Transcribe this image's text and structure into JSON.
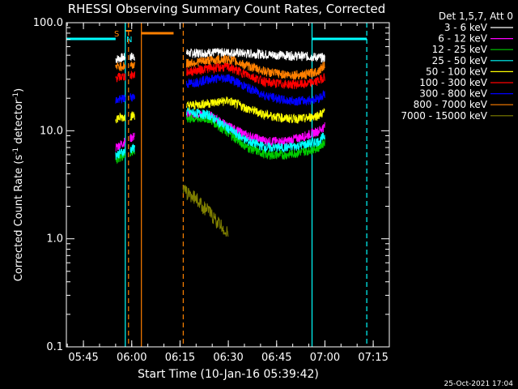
{
  "chart_data": {
    "type": "line",
    "title": "RHESSI Observing Summary Count Rates, Corrected",
    "xlabel": "Start Time (10-Jan-16 05:39:42)",
    "ylabel": "Corrected Count Rate (s⁻¹ detector⁻¹)",
    "ylabel_main": "Corrected Count Rate (s",
    "ylabel_sup1": "-1",
    "ylabel_mid": " detector",
    "ylabel_sup2": "-1",
    "ylabel_end": ")",
    "yscale": "log",
    "ylim": [
      0.1,
      100.0
    ],
    "xlim": [
      "05:39:42",
      "07:20:00"
    ],
    "ytick_labels": [
      "0.1",
      "1.0",
      "10.0",
      "100.0"
    ],
    "xtick_labels": [
      "05:45",
      "06:00",
      "06:15",
      "06:30",
      "06:45",
      "07:00",
      "07:15"
    ],
    "legend": {
      "header": "Det 1,5,7, Att 0",
      "placement": "outside-right"
    },
    "footer_stamp": "25-Oct-2021 17:04",
    "markers": {
      "S": "S",
      "N": "N"
    },
    "series": [
      {
        "name": "3 - 6 keV",
        "color": "#ffffff",
        "x": [
          "05:55",
          "05:58",
          "06:01",
          "06:17",
          "06:24",
          "06:30",
          "06:36",
          "06:42",
          "06:48",
          "06:54",
          "06:58",
          "07:00"
        ],
        "y": [
          46,
          48,
          49,
          52,
          53,
          53,
          52,
          51,
          50,
          49,
          48,
          47
        ]
      },
      {
        "name": "6 - 12 keV",
        "color": "#ff00ff",
        "x": [
          "05:55",
          "05:58",
          "06:01",
          "06:17",
          "06:24",
          "06:30",
          "06:36",
          "06:42",
          "06:48",
          "06:54",
          "06:58",
          "07:00"
        ],
        "y": [
          7,
          8,
          9,
          14,
          14,
          11,
          9,
          8,
          8,
          9,
          10,
          11
        ]
      },
      {
        "name": "12 - 25 keV",
        "color": "#00cc00",
        "x": [
          "05:55",
          "05:58",
          "06:01",
          "06:17",
          "06:24",
          "06:30",
          "06:36",
          "06:42",
          "06:48",
          "06:54",
          "06:58",
          "07:00"
        ],
        "y": [
          5.5,
          6,
          6.5,
          13,
          13,
          9.5,
          7,
          6,
          6,
          6.5,
          7,
          8
        ]
      },
      {
        "name": "25 - 50 keV",
        "color": "#00ffff",
        "x": [
          "05:55",
          "05:58",
          "06:01",
          "06:17",
          "06:24",
          "06:30",
          "06:36",
          "06:42",
          "06:48",
          "06:54",
          "06:58",
          "07:00"
        ],
        "y": [
          6,
          6.5,
          7,
          15,
          14,
          10.5,
          8,
          7,
          7,
          7.5,
          8,
          9
        ]
      },
      {
        "name": "50 - 100 keV",
        "color": "#ffff00",
        "x": [
          "05:55",
          "05:58",
          "06:01",
          "06:17",
          "06:24",
          "06:30",
          "06:36",
          "06:42",
          "06:48",
          "06:54",
          "06:58",
          "07:00"
        ],
        "y": [
          13,
          13.5,
          14,
          17,
          18,
          19,
          16,
          14,
          13,
          13,
          14,
          15
        ]
      },
      {
        "name": "100 - 300 keV",
        "color": "#ff0000",
        "x": [
          "05:55",
          "05:58",
          "06:01",
          "06:17",
          "06:24",
          "06:30",
          "06:36",
          "06:42",
          "06:48",
          "06:54",
          "06:58",
          "07:00"
        ],
        "y": [
          31,
          32,
          33,
          35,
          38,
          39,
          33,
          28,
          27,
          27,
          29,
          32
        ]
      },
      {
        "name": "300 - 800 keV",
        "color": "#0000ff",
        "x": [
          "05:55",
          "05:58",
          "06:01",
          "06:17",
          "06:24",
          "06:30",
          "06:36",
          "06:42",
          "06:48",
          "06:54",
          "06:58",
          "07:00"
        ],
        "y": [
          19,
          20,
          21,
          27,
          30,
          31,
          25,
          21,
          19,
          19,
          20,
          22
        ]
      },
      {
        "name": "800 - 7000 keV",
        "color": "#ff8000",
        "x": [
          "05:55",
          "05:58",
          "06:01",
          "06:17",
          "06:24",
          "06:30",
          "06:36",
          "06:42",
          "06:48",
          "06:54",
          "06:58",
          "07:00"
        ],
        "y": [
          39,
          40,
          41,
          42,
          45,
          46,
          40,
          35,
          33,
          33,
          36,
          41
        ]
      },
      {
        "name": "7000 - 15000 keV",
        "color": "#808000",
        "x": [
          "06:16",
          "06:18",
          "06:20",
          "06:22",
          "06:24",
          "06:26",
          "06:28",
          "06:30"
        ],
        "y": [
          2.8,
          2.6,
          2.4,
          2.0,
          1.8,
          1.5,
          1.3,
          1.1
        ]
      }
    ],
    "vertical_lines": [
      {
        "x": "05:58",
        "color": "#00ffff",
        "style": "solid"
      },
      {
        "x": "05:59",
        "color": "#ff8000",
        "style": "dashed"
      },
      {
        "x": "06:03",
        "color": "#ff8000",
        "style": "solid"
      },
      {
        "x": "06:16",
        "color": "#ff8000",
        "style": "dashed"
      },
      {
        "x": "06:56",
        "color": "#00ffff",
        "style": "solid"
      },
      {
        "x": "07:13",
        "color": "#00ffff",
        "style": "dashed"
      }
    ]
  }
}
